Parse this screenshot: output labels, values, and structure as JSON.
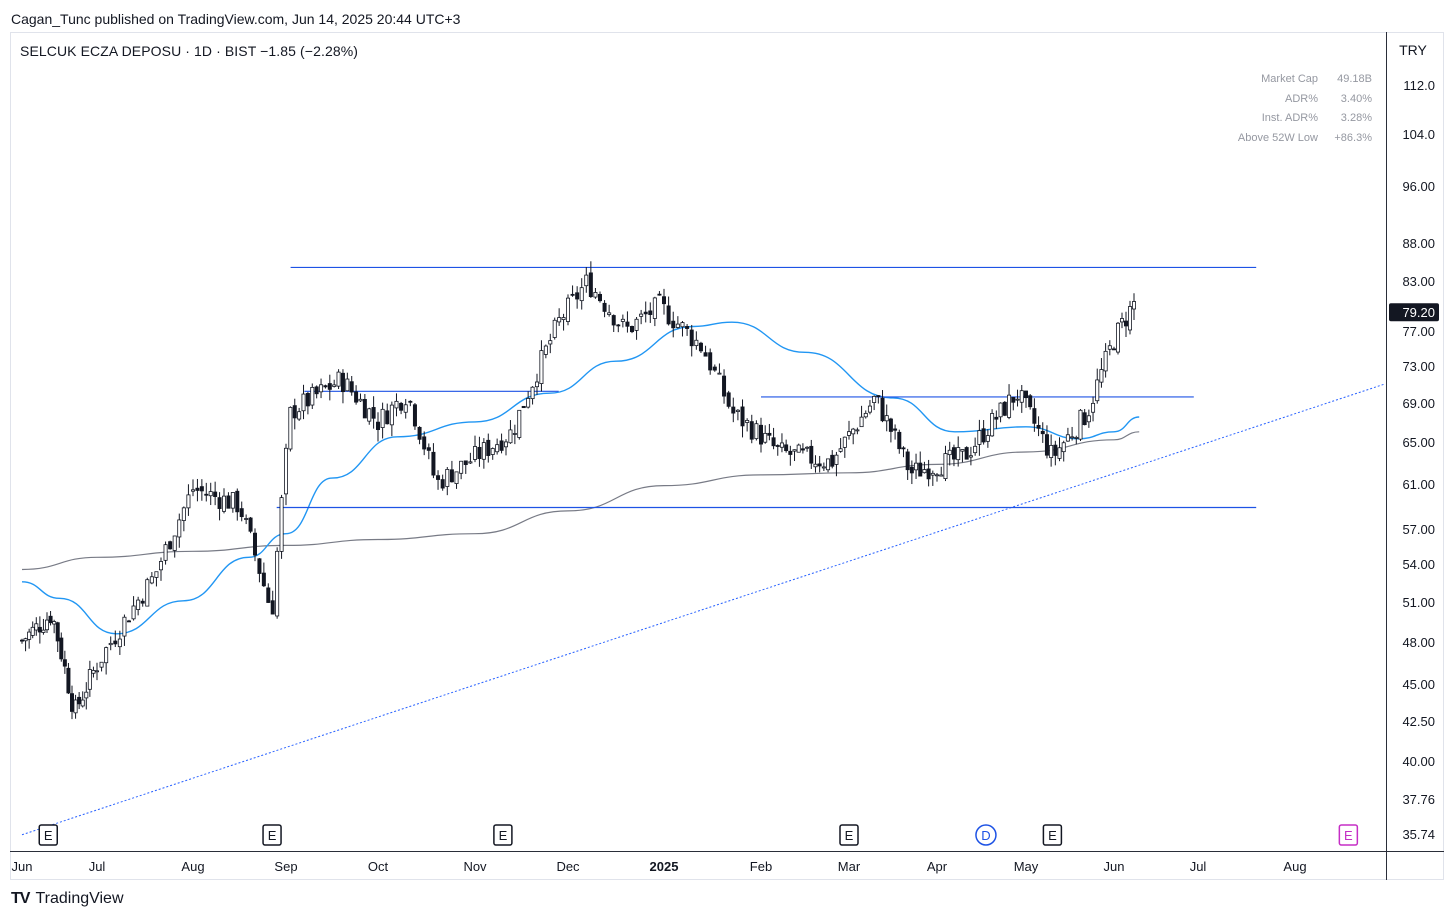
{
  "header": {
    "published": "Cagan_Tunc published on TradingView.com, Jun 14, 2025 20:44 UTC+3"
  },
  "symbol": {
    "name": "SELCUK ECZA DEPOSU",
    "interval": "1D",
    "exchange": "BIST",
    "change": "−1.85",
    "change_pct": "(−2.28%)",
    "title_line": "SELCUK ECZA DEPOSU · 1D · BIST  −1.85 (−2.28%)"
  },
  "currency": "TRY",
  "stats": [
    {
      "label": "Market Cap",
      "value": "49.18B"
    },
    {
      "label": "ADR%",
      "value": "3.40%"
    },
    {
      "label": "Inst. ADR%",
      "value": "3.28%"
    },
    {
      "label": "Above 52W Low",
      "value": "+86.3%"
    }
  ],
  "brand": "TradingView",
  "colors": {
    "candle_body": "#131722",
    "candle_up_body": "#ffffff",
    "ma_fast": "#2196f3",
    "ma_slow": "#787b86",
    "levels": "#1e53e5",
    "trendline": "#2962ff",
    "event_e": "#131722",
    "event_e_future": "#c52ec5",
    "event_d": "#1e53e5"
  },
  "chart_data": {
    "type": "candlestick",
    "title": "SELCUK ECZA DEPOSU · 1D · BIST",
    "last_price": "79.20",
    "y_axis": {
      "scale": "log",
      "ticks": [
        "112.0",
        "104.0",
        "96.00",
        "88.00",
        "83.00",
        "77.00",
        "73.00",
        "69.00",
        "65.00",
        "61.00",
        "57.00",
        "54.00",
        "51.00",
        "48.00",
        "45.00",
        "42.50",
        "40.00",
        "37.76",
        "35.74"
      ]
    },
    "x_axis": {
      "ticks": [
        "Jun",
        "Jul",
        "Aug",
        "Sep",
        "Oct",
        "Nov",
        "Dec",
        "2025",
        "Feb",
        "Mar",
        "Apr",
        "May",
        "Jun",
        "Jul",
        "Aug"
      ],
      "bold": [
        "2025"
      ]
    },
    "anchors": [
      {
        "month": 0,
        "close": 48.0
      },
      {
        "month": 0.4,
        "close": 50.0
      },
      {
        "month": 0.7,
        "close": 43.0
      },
      {
        "month": 1.2,
        "close": 48.5
      },
      {
        "month": 1.6,
        "close": 53.0
      },
      {
        "month": 2.0,
        "close": 60.5
      },
      {
        "month": 2.5,
        "close": 59.0
      },
      {
        "month": 2.85,
        "close": 50.0
      },
      {
        "month": 3.05,
        "close": 68.0
      },
      {
        "month": 3.6,
        "close": 71.5
      },
      {
        "month": 4.0,
        "close": 67.0
      },
      {
        "month": 4.3,
        "close": 70.0
      },
      {
        "month": 4.6,
        "close": 61.0
      },
      {
        "month": 5.4,
        "close": 66.0
      },
      {
        "month": 5.9,
        "close": 78.0
      },
      {
        "month": 6.2,
        "close": 83.0
      },
      {
        "month": 6.6,
        "close": 77.0
      },
      {
        "month": 6.95,
        "close": 80.0
      },
      {
        "month": 7.4,
        "close": 75.0
      },
      {
        "month": 7.7,
        "close": 68.0
      },
      {
        "month": 8.2,
        "close": 64.0
      },
      {
        "month": 8.8,
        "close": 63.0
      },
      {
        "month": 9.3,
        "close": 69.5
      },
      {
        "month": 9.7,
        "close": 62.0
      },
      {
        "month": 10.3,
        "close": 63.5
      },
      {
        "month": 10.9,
        "close": 70.0
      },
      {
        "month": 11.3,
        "close": 63.5
      },
      {
        "month": 11.7,
        "close": 68.0
      },
      {
        "month": 12.0,
        "close": 76.0
      },
      {
        "month": 12.25,
        "close": 80.5
      }
    ],
    "moving_average_fast": [
      {
        "month": 0,
        "value": 52.5
      },
      {
        "month": 0.5,
        "value": 51.2
      },
      {
        "month": 1.2,
        "value": 48.5
      },
      {
        "month": 1.9,
        "value": 51.0
      },
      {
        "month": 2.6,
        "value": 54.5
      },
      {
        "month": 3.0,
        "value": 56.5
      },
      {
        "month": 3.5,
        "value": 61.5
      },
      {
        "month": 4.2,
        "value": 65.5
      },
      {
        "month": 5.0,
        "value": 67.0
      },
      {
        "month": 5.8,
        "value": 70.0
      },
      {
        "month": 6.5,
        "value": 73.5
      },
      {
        "month": 7.3,
        "value": 77.5
      },
      {
        "month": 7.7,
        "value": 78.0
      },
      {
        "month": 8.5,
        "value": 74.5
      },
      {
        "month": 9.5,
        "value": 69.5
      },
      {
        "month": 10.2,
        "value": 66.0
      },
      {
        "month": 11.0,
        "value": 66.5
      },
      {
        "month": 11.6,
        "value": 65.3
      },
      {
        "month": 12.0,
        "value": 66.0
      },
      {
        "month": 12.3,
        "value": 67.5
      }
    ],
    "moving_average_slow": [
      {
        "month": 0,
        "value": 53.5
      },
      {
        "month": 1.0,
        "value": 54.5
      },
      {
        "month": 2.0,
        "value": 55.0
      },
      {
        "month": 3.0,
        "value": 55.5
      },
      {
        "month": 4.0,
        "value": 56.0
      },
      {
        "month": 5.0,
        "value": 56.5
      },
      {
        "month": 6.0,
        "value": 58.5
      },
      {
        "month": 7.0,
        "value": 60.8
      },
      {
        "month": 8.0,
        "value": 61.8
      },
      {
        "month": 9.0,
        "value": 62.0
      },
      {
        "month": 10.0,
        "value": 62.8
      },
      {
        "month": 11.0,
        "value": 64.0
      },
      {
        "month": 12.0,
        "value": 65.2
      },
      {
        "month": 12.3,
        "value": 66.0
      }
    ],
    "levels": [
      {
        "value": 84.8,
        "from_month": 3.05,
        "to_month": 13.6
      },
      {
        "value": 70.2,
        "from_month": 3.2,
        "to_month": 5.9
      },
      {
        "value": 69.6,
        "from_month": 8.0,
        "to_month": 12.95
      },
      {
        "value": 58.8,
        "from_month": 2.9,
        "to_month": 13.6
      }
    ],
    "trendline": {
      "from": {
        "month": 0,
        "value": 35.7
      },
      "to": {
        "month": 15.3,
        "value": 72.3
      }
    },
    "events": [
      {
        "label": "E",
        "kind": "earnings",
        "month": 0.35
      },
      {
        "label": "E",
        "kind": "earnings",
        "month": 2.85
      },
      {
        "label": "E",
        "kind": "earnings",
        "month": 5.3
      },
      {
        "label": "E",
        "kind": "earnings",
        "month": 9.0
      },
      {
        "label": "D",
        "kind": "dividend",
        "month": 10.55
      },
      {
        "label": "E",
        "kind": "earnings",
        "month": 11.3
      },
      {
        "label": "E",
        "kind": "earnings_future",
        "month": 14.55
      }
    ]
  }
}
